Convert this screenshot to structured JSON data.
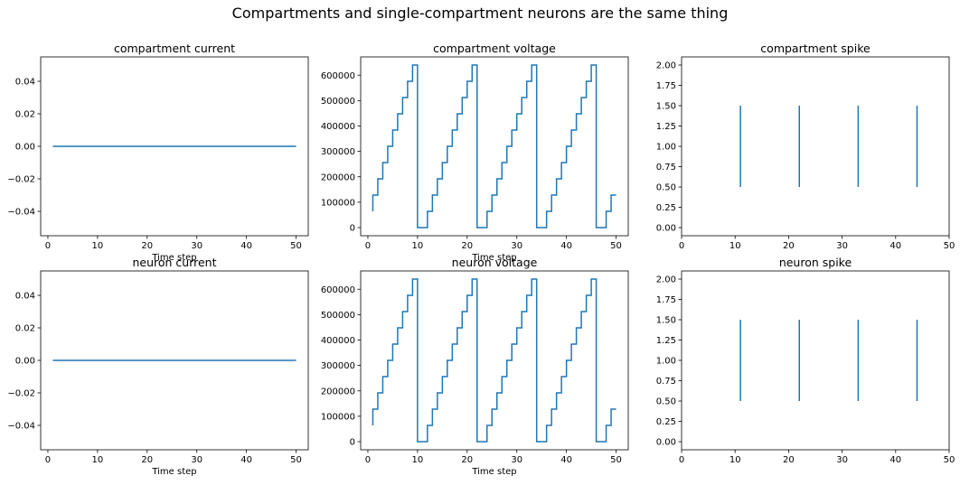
{
  "figure": {
    "suptitle": "Compartments and single-compartment neurons are the same thing",
    "line_color": "#1f77b4"
  },
  "chart_data": [
    {
      "type": "line",
      "title": "compartment current",
      "xlabel": "Time step",
      "ylabel": "",
      "xlim": [
        -1.45,
        52.45
      ],
      "ylim": [
        -0.055,
        0.055
      ],
      "xticks": [
        0,
        10,
        20,
        30,
        40,
        50
      ],
      "xtick_labels": [
        "0",
        "10",
        "20",
        "30",
        "40",
        "50"
      ],
      "yticks": [
        -0.04,
        -0.02,
        0.0,
        0.02,
        0.04
      ],
      "ytick_labels": [
        "−0.04",
        "−0.02",
        "0.00",
        "0.02",
        "0.04"
      ],
      "step": false,
      "series": [
        {
          "x": [
            1,
            50
          ],
          "y": [
            0,
            0
          ]
        }
      ]
    },
    {
      "type": "line",
      "title": "compartment voltage",
      "xlabel": "Time step",
      "ylabel": "",
      "xlim": [
        -1.45,
        52.45
      ],
      "ylim": [
        -32000,
        672000
      ],
      "xticks": [
        0,
        10,
        20,
        30,
        40,
        50
      ],
      "xtick_labels": [
        "0",
        "10",
        "20",
        "30",
        "40",
        "50"
      ],
      "yticks": [
        0,
        100000,
        200000,
        300000,
        400000,
        500000,
        600000
      ],
      "ytick_labels": [
        "0",
        "100000",
        "200000",
        "300000",
        "400000",
        "500000",
        "600000"
      ],
      "step": true,
      "series": [
        {
          "x": [
            1,
            2,
            3,
            4,
            5,
            6,
            7,
            8,
            9,
            10,
            11,
            12,
            13,
            14,
            15,
            16,
            17,
            18,
            19,
            20,
            21,
            22,
            23,
            24,
            25,
            26,
            27,
            28,
            29,
            30,
            31,
            32,
            33,
            34,
            35,
            36,
            37,
            38,
            39,
            40,
            41,
            42,
            43,
            44,
            45,
            46,
            47,
            48,
            49,
            50
          ],
          "y": [
            64000,
            128000,
            192000,
            256000,
            320000,
            384000,
            448000,
            512000,
            576000,
            640000,
            0,
            0,
            64000,
            128000,
            192000,
            256000,
            320000,
            384000,
            448000,
            512000,
            576000,
            640000,
            0,
            0,
            64000,
            128000,
            192000,
            256000,
            320000,
            384000,
            448000,
            512000,
            576000,
            640000,
            0,
            0,
            64000,
            128000,
            192000,
            256000,
            320000,
            384000,
            448000,
            512000,
            576000,
            640000,
            0,
            0,
            64000,
            128000
          ]
        }
      ]
    },
    {
      "type": "vlines",
      "title": "compartment spike",
      "xlabel": "",
      "ylabel": "",
      "xlim": [
        0,
        50
      ],
      "ylim": [
        -0.1,
        2.1
      ],
      "xticks": [
        0,
        10,
        20,
        30,
        40,
        50
      ],
      "xtick_labels": [
        "0",
        "10",
        "20",
        "30",
        "40",
        "50"
      ],
      "yticks": [
        0.0,
        0.25,
        0.5,
        0.75,
        1.0,
        1.25,
        1.5,
        1.75,
        2.0
      ],
      "ytick_labels": [
        "0.00",
        "0.25",
        "0.50",
        "0.75",
        "1.00",
        "1.25",
        "1.50",
        "1.75",
        "2.00"
      ],
      "spikes": [
        11,
        22,
        33,
        44
      ],
      "ymin": 0.5,
      "ymax": 1.5
    },
    {
      "type": "line",
      "title": "neuron current",
      "xlabel": "Time step",
      "ylabel": "",
      "xlim": [
        -1.45,
        52.45
      ],
      "ylim": [
        -0.055,
        0.055
      ],
      "xticks": [
        0,
        10,
        20,
        30,
        40,
        50
      ],
      "xtick_labels": [
        "0",
        "10",
        "20",
        "30",
        "40",
        "50"
      ],
      "yticks": [
        -0.04,
        -0.02,
        0.0,
        0.02,
        0.04
      ],
      "ytick_labels": [
        "−0.04",
        "−0.02",
        "0.00",
        "0.02",
        "0.04"
      ],
      "step": false,
      "series": [
        {
          "x": [
            1,
            50
          ],
          "y": [
            0,
            0
          ]
        }
      ]
    },
    {
      "type": "line",
      "title": "neuron voltage",
      "xlabel": "Time step",
      "ylabel": "",
      "xlim": [
        -1.45,
        52.45
      ],
      "ylim": [
        -32000,
        672000
      ],
      "xticks": [
        0,
        10,
        20,
        30,
        40,
        50
      ],
      "xtick_labels": [
        "0",
        "10",
        "20",
        "30",
        "40",
        "50"
      ],
      "yticks": [
        0,
        100000,
        200000,
        300000,
        400000,
        500000,
        600000
      ],
      "ytick_labels": [
        "0",
        "100000",
        "200000",
        "300000",
        "400000",
        "500000",
        "600000"
      ],
      "step": true,
      "series": [
        {
          "x": [
            1,
            2,
            3,
            4,
            5,
            6,
            7,
            8,
            9,
            10,
            11,
            12,
            13,
            14,
            15,
            16,
            17,
            18,
            19,
            20,
            21,
            22,
            23,
            24,
            25,
            26,
            27,
            28,
            29,
            30,
            31,
            32,
            33,
            34,
            35,
            36,
            37,
            38,
            39,
            40,
            41,
            42,
            43,
            44,
            45,
            46,
            47,
            48,
            49,
            50
          ],
          "y": [
            64000,
            128000,
            192000,
            256000,
            320000,
            384000,
            448000,
            512000,
            576000,
            640000,
            0,
            0,
            64000,
            128000,
            192000,
            256000,
            320000,
            384000,
            448000,
            512000,
            576000,
            640000,
            0,
            0,
            64000,
            128000,
            192000,
            256000,
            320000,
            384000,
            448000,
            512000,
            576000,
            640000,
            0,
            0,
            64000,
            128000,
            192000,
            256000,
            320000,
            384000,
            448000,
            512000,
            576000,
            640000,
            0,
            0,
            64000,
            128000
          ]
        }
      ]
    },
    {
      "type": "vlines",
      "title": "neuron spike",
      "xlabel": "",
      "ylabel": "",
      "xlim": [
        0,
        50
      ],
      "ylim": [
        -0.1,
        2.1
      ],
      "xticks": [
        0,
        10,
        20,
        30,
        40,
        50
      ],
      "xtick_labels": [
        "0",
        "10",
        "20",
        "30",
        "40",
        "50"
      ],
      "yticks": [
        0.0,
        0.25,
        0.5,
        0.75,
        1.0,
        1.25,
        1.5,
        1.75,
        2.0
      ],
      "ytick_labels": [
        "0.00",
        "0.25",
        "0.50",
        "0.75",
        "1.00",
        "1.25",
        "1.50",
        "1.75",
        "2.00"
      ],
      "spikes": [
        11,
        22,
        33,
        44
      ],
      "ymin": 0.5,
      "ymax": 1.5
    }
  ]
}
